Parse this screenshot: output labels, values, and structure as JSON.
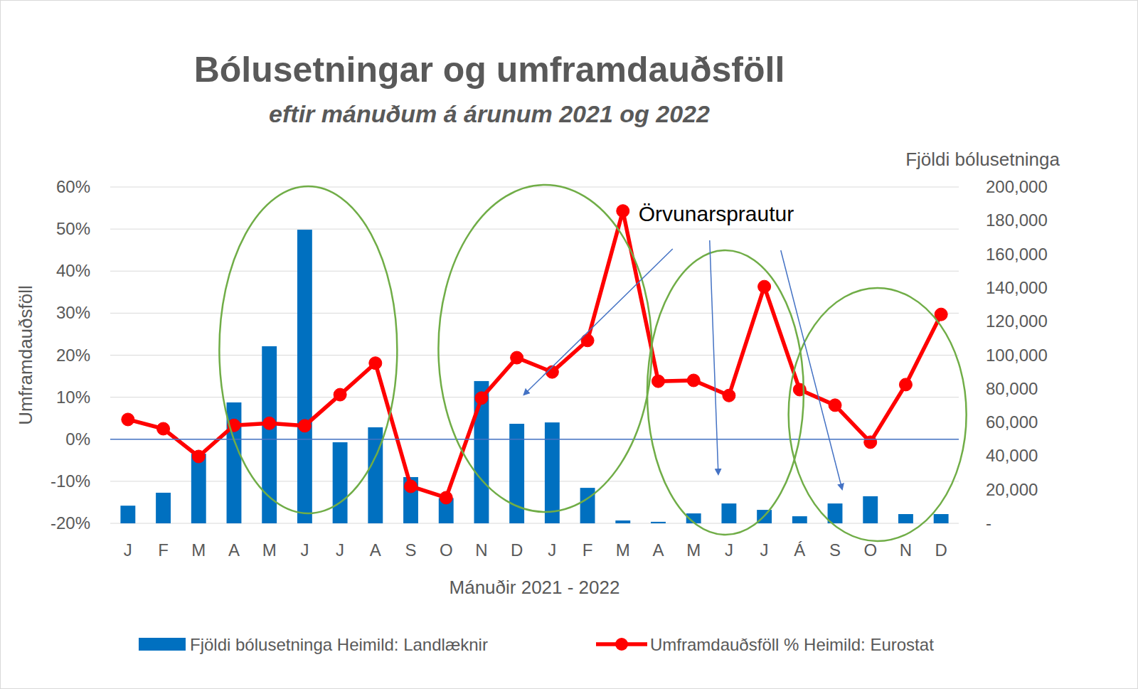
{
  "chart_data": {
    "type": "bar",
    "title": "Bólusetningar og umframdauðsföll",
    "subtitle": "eftir mánuðum á árunum 2021 og 2022",
    "ylabel": "Umframdauðsföll",
    "y2label": "Fjöldi bólusetninga",
    "xlabel": "Mánuðir 2021 - 2022",
    "annotation": "Örvunarsprautur",
    "categories": [
      "J",
      "F",
      "M",
      "A",
      "M",
      "J",
      "J",
      "A",
      "S",
      "O",
      "N",
      "D",
      "J",
      "F",
      "M",
      "A",
      "M",
      "J",
      "J",
      "Á",
      "S",
      "O",
      "N",
      "D"
    ],
    "series": [
      {
        "name": "Fjöldi bólusetninga Heimild: Landlæknir",
        "type": "bar",
        "axis": "y2",
        "color": "#0070c0",
        "values": [
          10500,
          18200,
          41400,
          71900,
          105300,
          174600,
          48200,
          57100,
          27500,
          15000,
          84600,
          59200,
          60000,
          21100,
          1700,
          900,
          5900,
          11800,
          8000,
          4200,
          11800,
          16100,
          5500,
          5500
        ]
      },
      {
        "name": "Umframdauðsföll % Heimild: Eurostat",
        "type": "line",
        "axis": "y",
        "color": "#ff0000",
        "marker": "circle",
        "line_style": "solid",
        "values": [
          4.7,
          2.5,
          -4.1,
          3.3,
          3.8,
          3.2,
          10.6,
          18.1,
          -11.2,
          -13.9,
          9.8,
          19.4,
          16.0,
          23.5,
          54.3,
          13.8,
          14.0,
          10.4,
          36.3,
          11.8,
          8.1,
          -0.7,
          13.0,
          29.7
        ]
      }
    ],
    "ylim": [
      -20,
      60
    ],
    "yticks": [
      {
        "value": -20,
        "label": "-20%"
      },
      {
        "value": -10,
        "label": "-10%"
      },
      {
        "value": 0,
        "label": "0%"
      },
      {
        "value": 10,
        "label": "10%"
      },
      {
        "value": 20,
        "label": "20%"
      },
      {
        "value": 30,
        "label": "30%"
      },
      {
        "value": 40,
        "label": "40%"
      },
      {
        "value": 50,
        "label": "50%"
      },
      {
        "value": 60,
        "label": "60%"
      }
    ],
    "y2lim": [
      0,
      200000
    ],
    "y2ticks": [
      {
        "value": 0,
        "label": "-"
      },
      {
        "value": 20000,
        "label": "20,000"
      },
      {
        "value": 40000,
        "label": "40,000"
      },
      {
        "value": 60000,
        "label": "60,000"
      },
      {
        "value": 80000,
        "label": "80,000"
      },
      {
        "value": 100000,
        "label": "100,000"
      },
      {
        "value": 120000,
        "label": "120,000"
      },
      {
        "value": 140000,
        "label": "140,000"
      },
      {
        "value": 160000,
        "label": "160,000"
      },
      {
        "value": 180000,
        "label": "180,000"
      },
      {
        "value": 200000,
        "label": "200,000"
      }
    ],
    "grid": true,
    "legend": "bottom"
  }
}
